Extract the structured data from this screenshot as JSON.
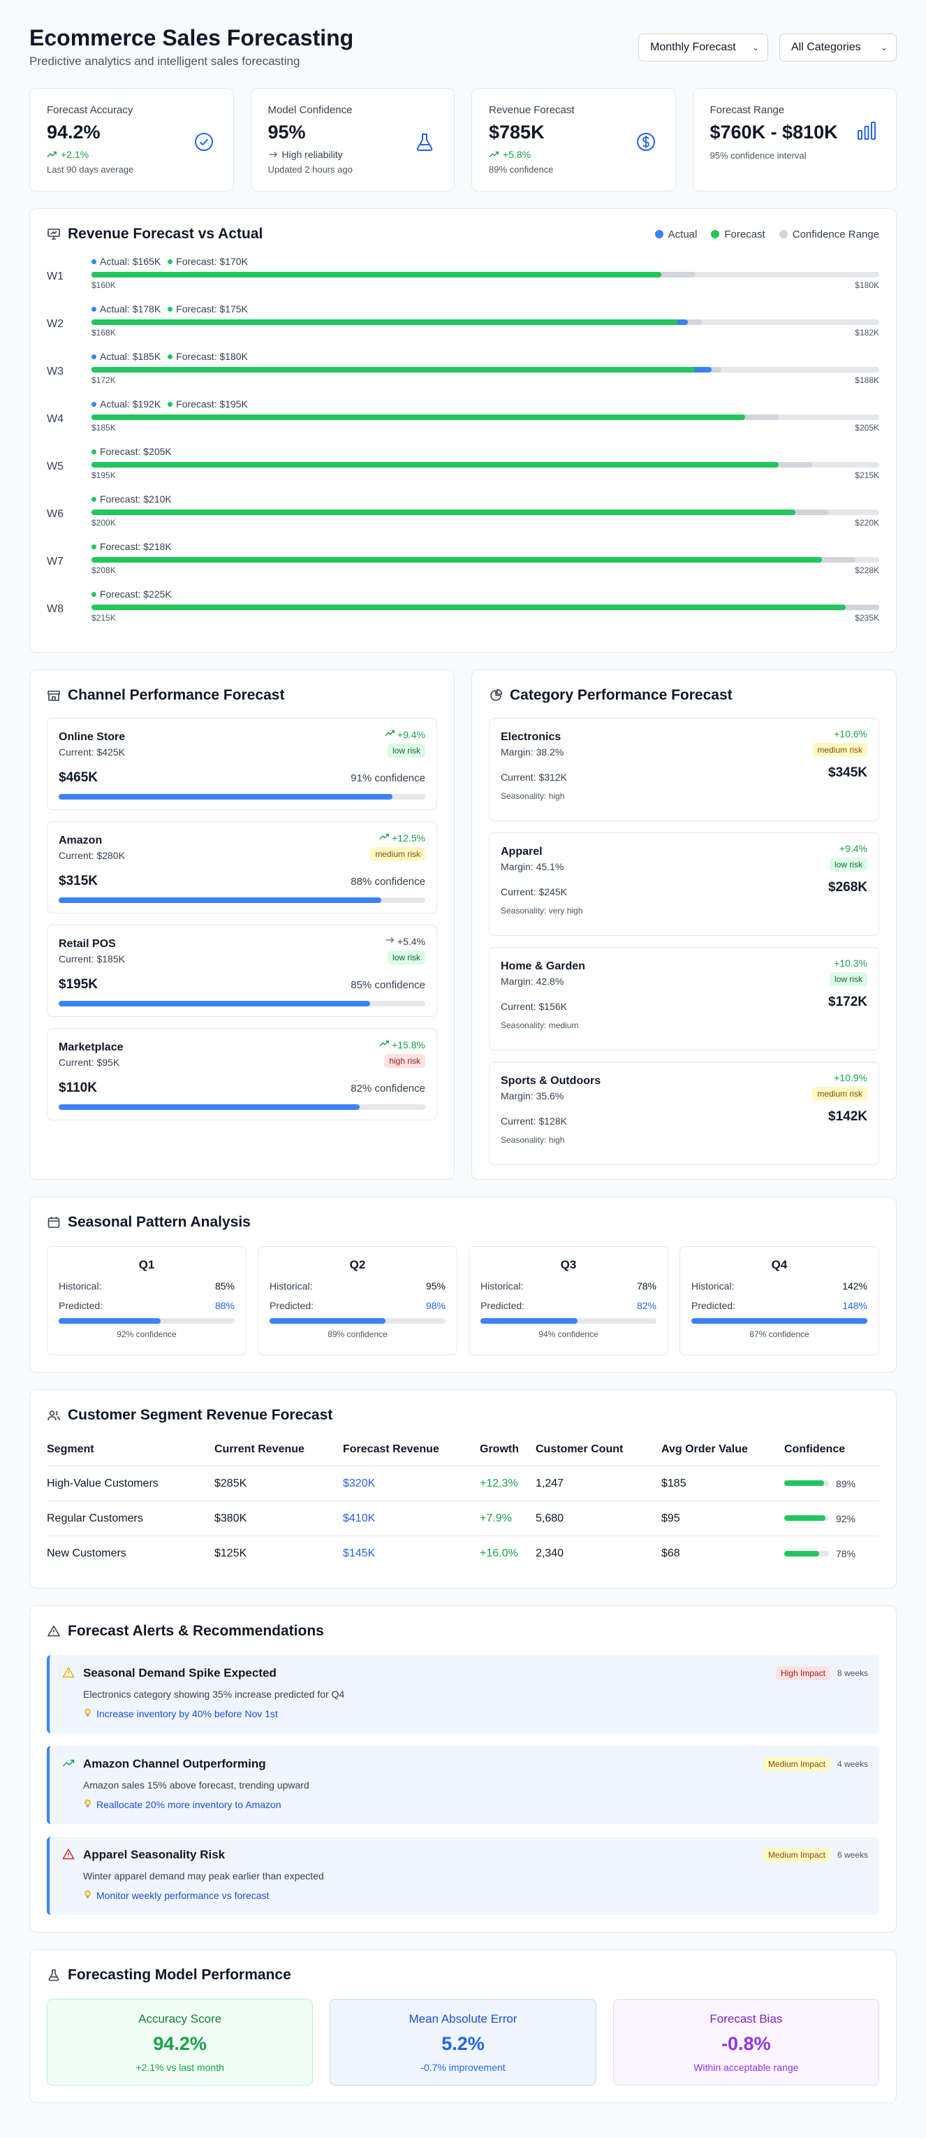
{
  "header": {
    "title": "Ecommerce Sales Forecasting",
    "subtitle": "Predictive analytics and intelligent sales forecasting",
    "period_select": "Monthly Forecast",
    "category_select": "All Categories"
  },
  "kpis": [
    {
      "label": "Forecast Accuracy",
      "value": "94.2%",
      "line": "+2.1%",
      "foot": "Last 90 days average"
    },
    {
      "label": "Model Confidence",
      "value": "95%",
      "line": "High reliability",
      "foot": "Updated 2 hours ago"
    },
    {
      "label": "Revenue Forecast",
      "value": "$785K",
      "line": "+5.8%",
      "foot": "89% confidence"
    },
    {
      "label": "Forecast Range",
      "value": "$760K - $810K",
      "foot": "95% confidence interval"
    }
  ],
  "revenue": {
    "title": "Revenue Forecast vs Actual",
    "legend": {
      "actual": "Actual",
      "forecast": "Forecast",
      "range": "Confidence Range"
    },
    "colors": {
      "actual": "#3b82f6",
      "forecast": "#22c55e",
      "range": "#d1d5db"
    },
    "scale_max": 235,
    "weeks": [
      {
        "week": "W1",
        "actual": 165,
        "forecast": 170,
        "low": 160,
        "high": 180,
        "actual_label": "Actual: $165K",
        "forecast_label": "Forecast: $170K",
        "low_label": "$160K",
        "high_label": "$180K"
      },
      {
        "week": "W2",
        "actual": 178,
        "forecast": 175,
        "low": 168,
        "high": 182,
        "actual_label": "Actual: $178K",
        "forecast_label": "Forecast: $175K",
        "low_label": "$168K",
        "high_label": "$182K"
      },
      {
        "week": "W3",
        "actual": 185,
        "forecast": 180,
        "low": 172,
        "high": 188,
        "actual_label": "Actual: $185K",
        "forecast_label": "Forecast: $180K",
        "low_label": "$172K",
        "high_label": "$188K"
      },
      {
        "week": "W4",
        "actual": 192,
        "forecast": 195,
        "low": 185,
        "high": 205,
        "actual_label": "Actual: $192K",
        "forecast_label": "Forecast: $195K",
        "low_label": "$185K",
        "high_label": "$205K"
      },
      {
        "week": "W5",
        "actual": null,
        "forecast": 205,
        "low": 195,
        "high": 215,
        "actual_label": "",
        "forecast_label": "Forecast: $205K",
        "low_label": "$195K",
        "high_label": "$215K"
      },
      {
        "week": "W6",
        "actual": null,
        "forecast": 210,
        "low": 200,
        "high": 220,
        "actual_label": "",
        "forecast_label": "Forecast: $210K",
        "low_label": "$200K",
        "high_label": "$220K"
      },
      {
        "week": "W7",
        "actual": null,
        "forecast": 218,
        "low": 208,
        "high": 228,
        "actual_label": "",
        "forecast_label": "Forecast: $218K",
        "low_label": "$208K",
        "high_label": "$228K"
      },
      {
        "week": "W8",
        "actual": null,
        "forecast": 225,
        "low": 215,
        "high": 235,
        "actual_label": "",
        "forecast_label": "Forecast: $225K",
        "low_label": "$215K",
        "high_label": "$235K"
      }
    ]
  },
  "channels": {
    "title": "Channel Performance Forecast",
    "items": [
      {
        "name": "Online Store",
        "current": "Current: $425K",
        "growth": "+9.4%",
        "trend": "up",
        "risk": "low risk",
        "risk_level": "low",
        "value": "$465K",
        "confidence": "91% confidence",
        "conf_pct": 91
      },
      {
        "name": "Amazon",
        "current": "Current: $280K",
        "growth": "+12.5%",
        "trend": "up",
        "risk": "medium risk",
        "risk_level": "medium",
        "value": "$315K",
        "confidence": "88% confidence",
        "conf_pct": 88
      },
      {
        "name": "Retail POS",
        "current": "Current: $185K",
        "growth": "+5.4%",
        "trend": "flat",
        "risk": "low risk",
        "risk_level": "low",
        "value": "$195K",
        "confidence": "85% confidence",
        "conf_pct": 85
      },
      {
        "name": "Marketplace",
        "current": "Current: $95K",
        "growth": "+15.8%",
        "trend": "up",
        "risk": "high risk",
        "risk_level": "high",
        "value": "$110K",
        "confidence": "82% confidence",
        "conf_pct": 82
      }
    ]
  },
  "categories": {
    "title": "Category Performance Forecast",
    "items": [
      {
        "name": "Electronics",
        "margin": "Margin: 38.2%",
        "current": "Current: $312K",
        "seasonality": "Seasonality: high",
        "growth": "+10.6%",
        "risk": "medium risk",
        "risk_level": "medium",
        "value": "$345K"
      },
      {
        "name": "Apparel",
        "margin": "Margin: 45.1%",
        "current": "Current: $245K",
        "seasonality": "Seasonality: very high",
        "growth": "+9.4%",
        "risk": "low risk",
        "risk_level": "low",
        "value": "$268K"
      },
      {
        "name": "Home & Garden",
        "margin": "Margin: 42.8%",
        "current": "Current: $156K",
        "seasonality": "Seasonality: medium",
        "growth": "+10.3%",
        "risk": "low risk",
        "risk_level": "low",
        "value": "$172K"
      },
      {
        "name": "Sports & Outdoors",
        "margin": "Margin: 35.6%",
        "current": "Current: $128K",
        "seasonality": "Seasonality: high",
        "growth": "+10.9%",
        "risk": "medium risk",
        "risk_level": "medium",
        "value": "$142K"
      }
    ]
  },
  "seasonal": {
    "title": "Seasonal Pattern Analysis",
    "historical_label": "Historical:",
    "predicted_label": "Predicted:",
    "quarters": [
      {
        "q": "Q1",
        "historical": "85%",
        "predicted": "88%",
        "pred_pct": 58,
        "confidence": "92% confidence"
      },
      {
        "q": "Q2",
        "historical": "95%",
        "predicted": "98%",
        "pred_pct": 66,
        "confidence": "89% confidence"
      },
      {
        "q": "Q3",
        "historical": "78%",
        "predicted": "82%",
        "pred_pct": 55,
        "confidence": "94% confidence"
      },
      {
        "q": "Q4",
        "historical": "142%",
        "predicted": "148%",
        "pred_pct": 100,
        "confidence": "87% confidence"
      }
    ]
  },
  "segments": {
    "title": "Customer Segment Revenue Forecast",
    "headers": [
      "Segment",
      "Current Revenue",
      "Forecast Revenue",
      "Growth",
      "Customer Count",
      "Avg Order Value",
      "Confidence"
    ],
    "rows": [
      {
        "segment": "High-Value Customers",
        "current": "$285K",
        "forecast": "$320K",
        "growth": "+12.3%",
        "count": "1,247",
        "aov": "$185",
        "confidence": "89%",
        "conf_pct": 89
      },
      {
        "segment": "Regular Customers",
        "current": "$380K",
        "forecast": "$410K",
        "growth": "+7.9%",
        "count": "5,680",
        "aov": "$95",
        "confidence": "92%",
        "conf_pct": 92
      },
      {
        "segment": "New Customers",
        "current": "$125K",
        "forecast": "$145K",
        "growth": "+16.0%",
        "count": "2,340",
        "aov": "$68",
        "confidence": "78%",
        "conf_pct": 78
      }
    ]
  },
  "alerts": {
    "title": "Forecast Alerts & Recommendations",
    "items": [
      {
        "icon": "warning-icon",
        "title": "Seasonal Demand Spike Expected",
        "desc": "Electronics category showing 35% increase predicted for Q4",
        "rec": "Increase inventory by 40% before Nov 1st",
        "impact": "High Impact",
        "impact_level": "high",
        "time": "8 weeks"
      },
      {
        "icon": "trend-up-icon",
        "title": "Amazon Channel Outperforming",
        "desc": "Amazon sales 15% above forecast, trending upward",
        "rec": "Reallocate 20% more inventory to Amazon",
        "impact": "Medium Impact",
        "impact_level": "medium",
        "time": "4 weeks"
      },
      {
        "icon": "alert-triangle-icon",
        "title": "Apparel Seasonality Risk",
        "desc": "Winter apparel demand may peak earlier than expected",
        "rec": "Monitor weekly performance vs forecast",
        "impact": "Medium Impact",
        "impact_level": "medium",
        "time": "6 weeks"
      }
    ]
  },
  "model": {
    "title": "Forecasting Model Performance",
    "cards": [
      {
        "label": "Accuracy Score",
        "value": "94.2%",
        "foot": "+2.1% vs last month"
      },
      {
        "label": "Mean Absolute Error",
        "value": "5.2%",
        "foot": "-0.7% improvement"
      },
      {
        "label": "Forecast Bias",
        "value": "-0.8%",
        "foot": "Within acceptable range"
      }
    ]
  }
}
